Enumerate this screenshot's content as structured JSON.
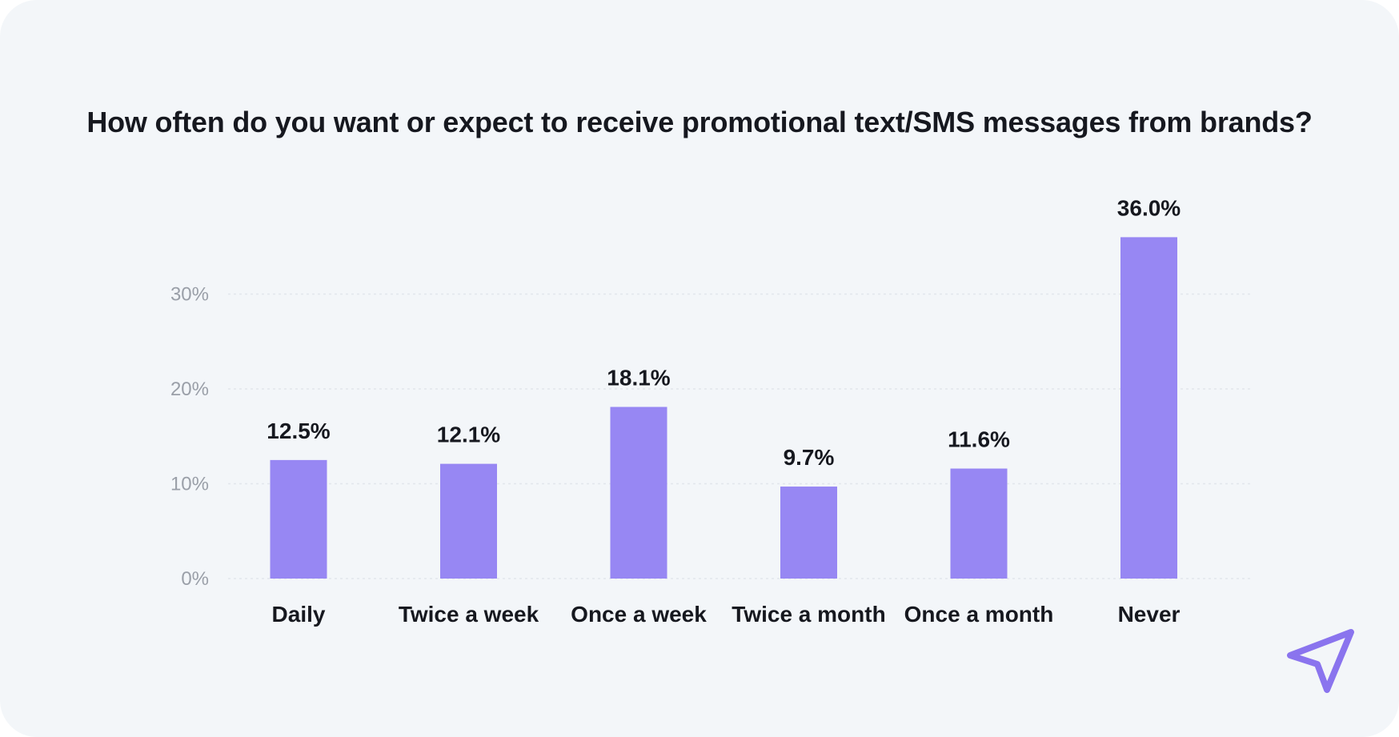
{
  "chart_data": {
    "type": "bar",
    "title": "How often do you want or expect to receive promotional text/SMS messages from brands?",
    "categories": [
      "Daily",
      "Twice a week",
      "Once a week",
      "Twice a month",
      "Once a month",
      "Never"
    ],
    "values": [
      12.5,
      12.1,
      18.1,
      9.7,
      11.6,
      36.0
    ],
    "value_labels": [
      "12.5%",
      "12.1%",
      "18.1%",
      "9.7%",
      "11.6%",
      "36.0%"
    ],
    "y_ticks": [
      0,
      10,
      20,
      30
    ],
    "y_tick_labels": [
      "0%",
      "10%",
      "20%",
      "30%"
    ],
    "ylim": [
      0,
      36
    ],
    "grid": true,
    "legend": "none",
    "colors": {
      "bar": "#9787f3",
      "grid": "#e2e6ec",
      "background": "#f3f6f9",
      "logo": "#8a74ee"
    }
  },
  "logo": {
    "icon": "paper-plane-icon"
  }
}
